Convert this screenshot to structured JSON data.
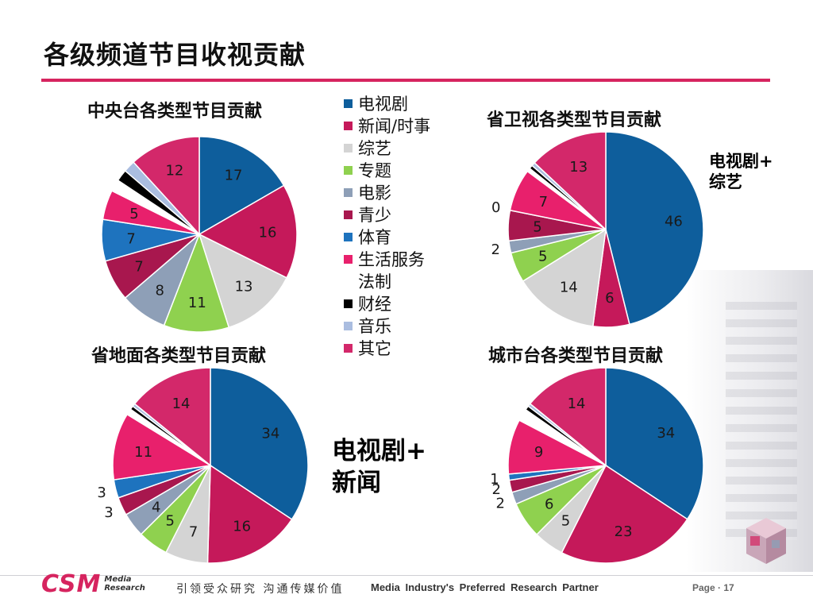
{
  "page": {
    "title": "各级频道节目收视贡献",
    "note_small": "电视剧+\n综艺",
    "note_big": "电视剧+\n新闻",
    "logo_mark": "CSM",
    "logo_sub_1": "Media",
    "logo_sub_2": "Research",
    "slogan": "引领受众研究 沟通传媒价值",
    "tagline": "Media Industry's Preferred Research Partner",
    "page_number": "Page · 17"
  },
  "colors": {
    "accent": "#d6245f"
  },
  "legend": [
    {
      "label": "电视剧",
      "color": "#0e5e9c"
    },
    {
      "label": "新闻/时事",
      "color": "#c5195a"
    },
    {
      "label": "综艺",
      "color": "#d4d4d4"
    },
    {
      "label": "专题",
      "color": "#8fd14f"
    },
    {
      "label": "电影",
      "color": "#8e9fb7"
    },
    {
      "label": "青少",
      "color": "#a8174e"
    },
    {
      "label": "体育",
      "color": "#1e73be"
    },
    {
      "label": "生活服务",
      "color": "#e8206c"
    },
    {
      "label": "法制",
      "color": "#ffffff"
    },
    {
      "label": "财经",
      "color": "#000000"
    },
    {
      "label": "音乐",
      "color": "#aabde0"
    },
    {
      "label": "其它",
      "color": "#d3286a"
    }
  ],
  "chart_data": [
    {
      "type": "pie",
      "title": "中央台各类型节目贡献",
      "categories": [
        "电视剧",
        "新闻/时事",
        "综艺",
        "专题",
        "电影",
        "青少",
        "体育",
        "生活服务",
        "法制",
        "财经",
        "音乐",
        "其它"
      ],
      "values": [
        17,
        16,
        13,
        11,
        8,
        7,
        7,
        5,
        2,
        2,
        2,
        12
      ],
      "labels": [
        "17",
        "16",
        "13",
        "11",
        "8",
        "7",
        "7",
        "5",
        "",
        "",
        "",
        "12"
      ]
    },
    {
      "type": "pie",
      "title": "省卫视各类型节目贡献",
      "categories": [
        "电视剧",
        "新闻/时事",
        "综艺",
        "专题",
        "电影",
        "青少",
        "体育",
        "生活服务",
        "法制",
        "财经",
        "音乐",
        "其它"
      ],
      "values": [
        46,
        6,
        14,
        5,
        2,
        5,
        0,
        7,
        0.6,
        0.6,
        0.6,
        13
      ],
      "labels": [
        "46",
        "6",
        "14",
        "5",
        "2",
        "5",
        "0",
        "7",
        "",
        "",
        "",
        "13"
      ]
    },
    {
      "type": "pie",
      "title": "省地面各类型节目贡献",
      "categories": [
        "电视剧",
        "新闻/时事",
        "综艺",
        "专题",
        "电影",
        "青少",
        "体育",
        "生活服务",
        "法制",
        "财经",
        "音乐",
        "其它"
      ],
      "values": [
        34,
        16,
        7,
        5,
        4,
        3,
        3,
        11,
        1,
        0.6,
        0.5,
        14
      ],
      "labels": [
        "34",
        "16",
        "7",
        "5",
        "4",
        "3",
        "3",
        "11",
        "",
        "",
        "",
        "14"
      ]
    },
    {
      "type": "pie",
      "title": "城市台各类型节目贡献",
      "categories": [
        "电视剧",
        "新闻/时事",
        "综艺",
        "专题",
        "电影",
        "青少",
        "体育",
        "生活服务",
        "法制",
        "财经",
        "音乐",
        "其它"
      ],
      "values": [
        34,
        23,
        5,
        6,
        2,
        2,
        1,
        9,
        2,
        0.7,
        0.5,
        14
      ],
      "labels": [
        "34",
        "23",
        "5",
        "6",
        "2",
        "2",
        "1",
        "9",
        "",
        "",
        "",
        "14"
      ]
    }
  ]
}
